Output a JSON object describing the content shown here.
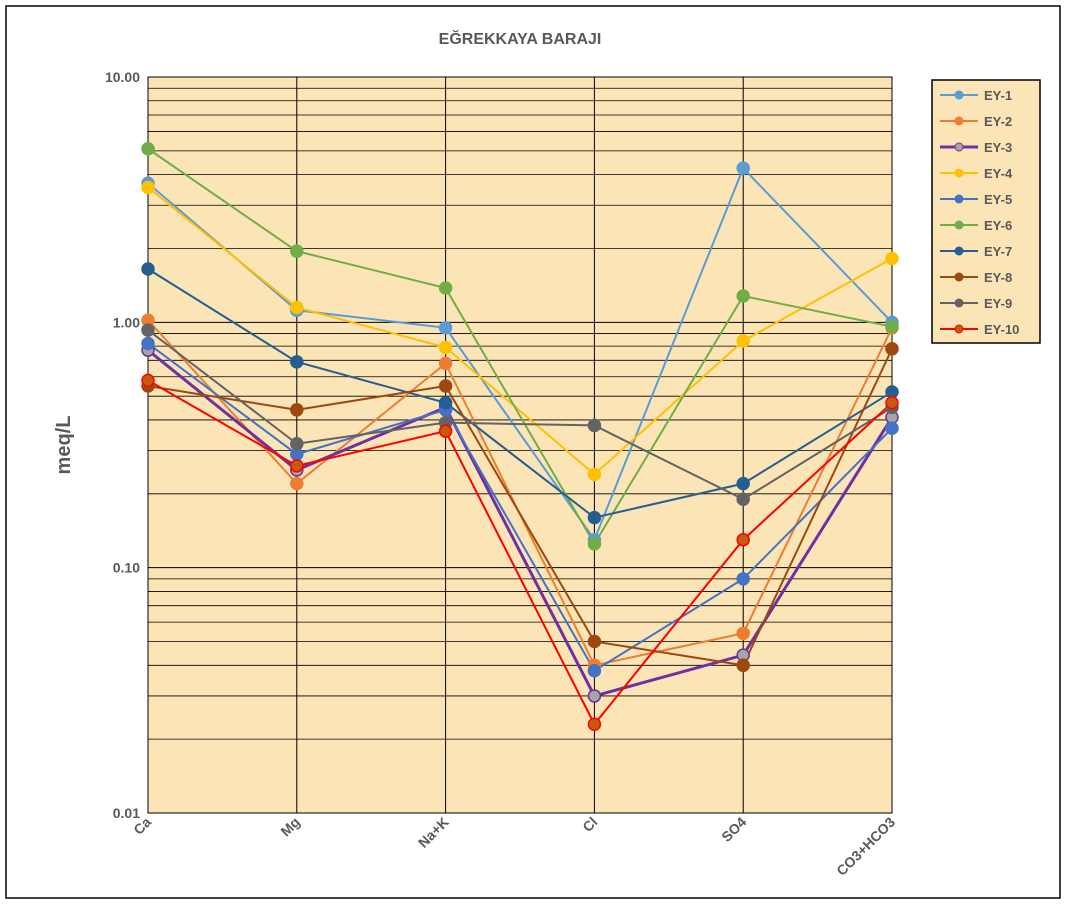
{
  "chart_data": {
    "type": "line",
    "title": "EĞREKKAYA BARAJI",
    "y_label": "meq/L",
    "log_scale": true,
    "grid": true,
    "legend": "right",
    "plot_background": "#FBE5B6",
    "categories": [
      "Ca",
      "Mg",
      "Na+K",
      "Cl",
      "SO4",
      "CO3+HCO3"
    ],
    "ylim": [
      0.01,
      10
    ],
    "yticks": [
      0.01,
      {
        "value": 0.1,
        "label": "0.10"
      },
      {
        "value": 1,
        "label": "1.00"
      },
      {
        "value": 10,
        "label": "10.00"
      }
    ],
    "minor_yticks": [
      0.02,
      0.03,
      0.04,
      0.05,
      0.06,
      0.07,
      0.08,
      0.09,
      0.2,
      0.3,
      0.4,
      0.5,
      0.6,
      0.7,
      0.8,
      0.9,
      2,
      3,
      4,
      5,
      6,
      7,
      8,
      9
    ],
    "series": [
      {
        "name": "EY-1",
        "color": "#5B9BD5",
        "values": [
          3.69,
          1.12,
          0.95,
          0.13,
          4.25,
          1.0
        ]
      },
      {
        "name": "EY-2",
        "color": "#ED7D31",
        "values": [
          1.02,
          0.22,
          0.68,
          0.04,
          0.054,
          0.95
        ]
      },
      {
        "name": "EY-3",
        "color": "#7030A0",
        "marker_color": "#A5A5A5",
        "values": [
          0.77,
          0.25,
          0.45,
          0.03,
          0.044,
          0.41
        ]
      },
      {
        "name": "EY-4",
        "color": "#FFC000",
        "values": [
          3.55,
          1.15,
          0.79,
          0.24,
          0.84,
          1.82
        ]
      },
      {
        "name": "EY-5",
        "color": "#4472C4",
        "values": [
          0.82,
          0.29,
          0.44,
          0.038,
          0.09,
          0.37
        ]
      },
      {
        "name": "EY-6",
        "color": "#70AD47",
        "values": [
          5.1,
          1.95,
          1.38,
          0.125,
          1.28,
          0.96
        ]
      },
      {
        "name": "EY-7",
        "color": "#255E91",
        "values": [
          1.65,
          0.69,
          0.47,
          0.16,
          0.22,
          0.52
        ]
      },
      {
        "name": "EY-8",
        "color": "#9E480E",
        "values": [
          0.55,
          0.44,
          0.55,
          0.05,
          0.04,
          0.78
        ]
      },
      {
        "name": "EY-9",
        "color": "#636363",
        "values": [
          0.93,
          0.32,
          0.39,
          0.38,
          0.19,
          0.45
        ]
      },
      {
        "name": "EY-10",
        "color": "#FF0000",
        "marker_color": "#C55A11",
        "values": [
          0.58,
          0.26,
          0.36,
          0.023,
          0.13,
          0.47
        ]
      }
    ]
  }
}
